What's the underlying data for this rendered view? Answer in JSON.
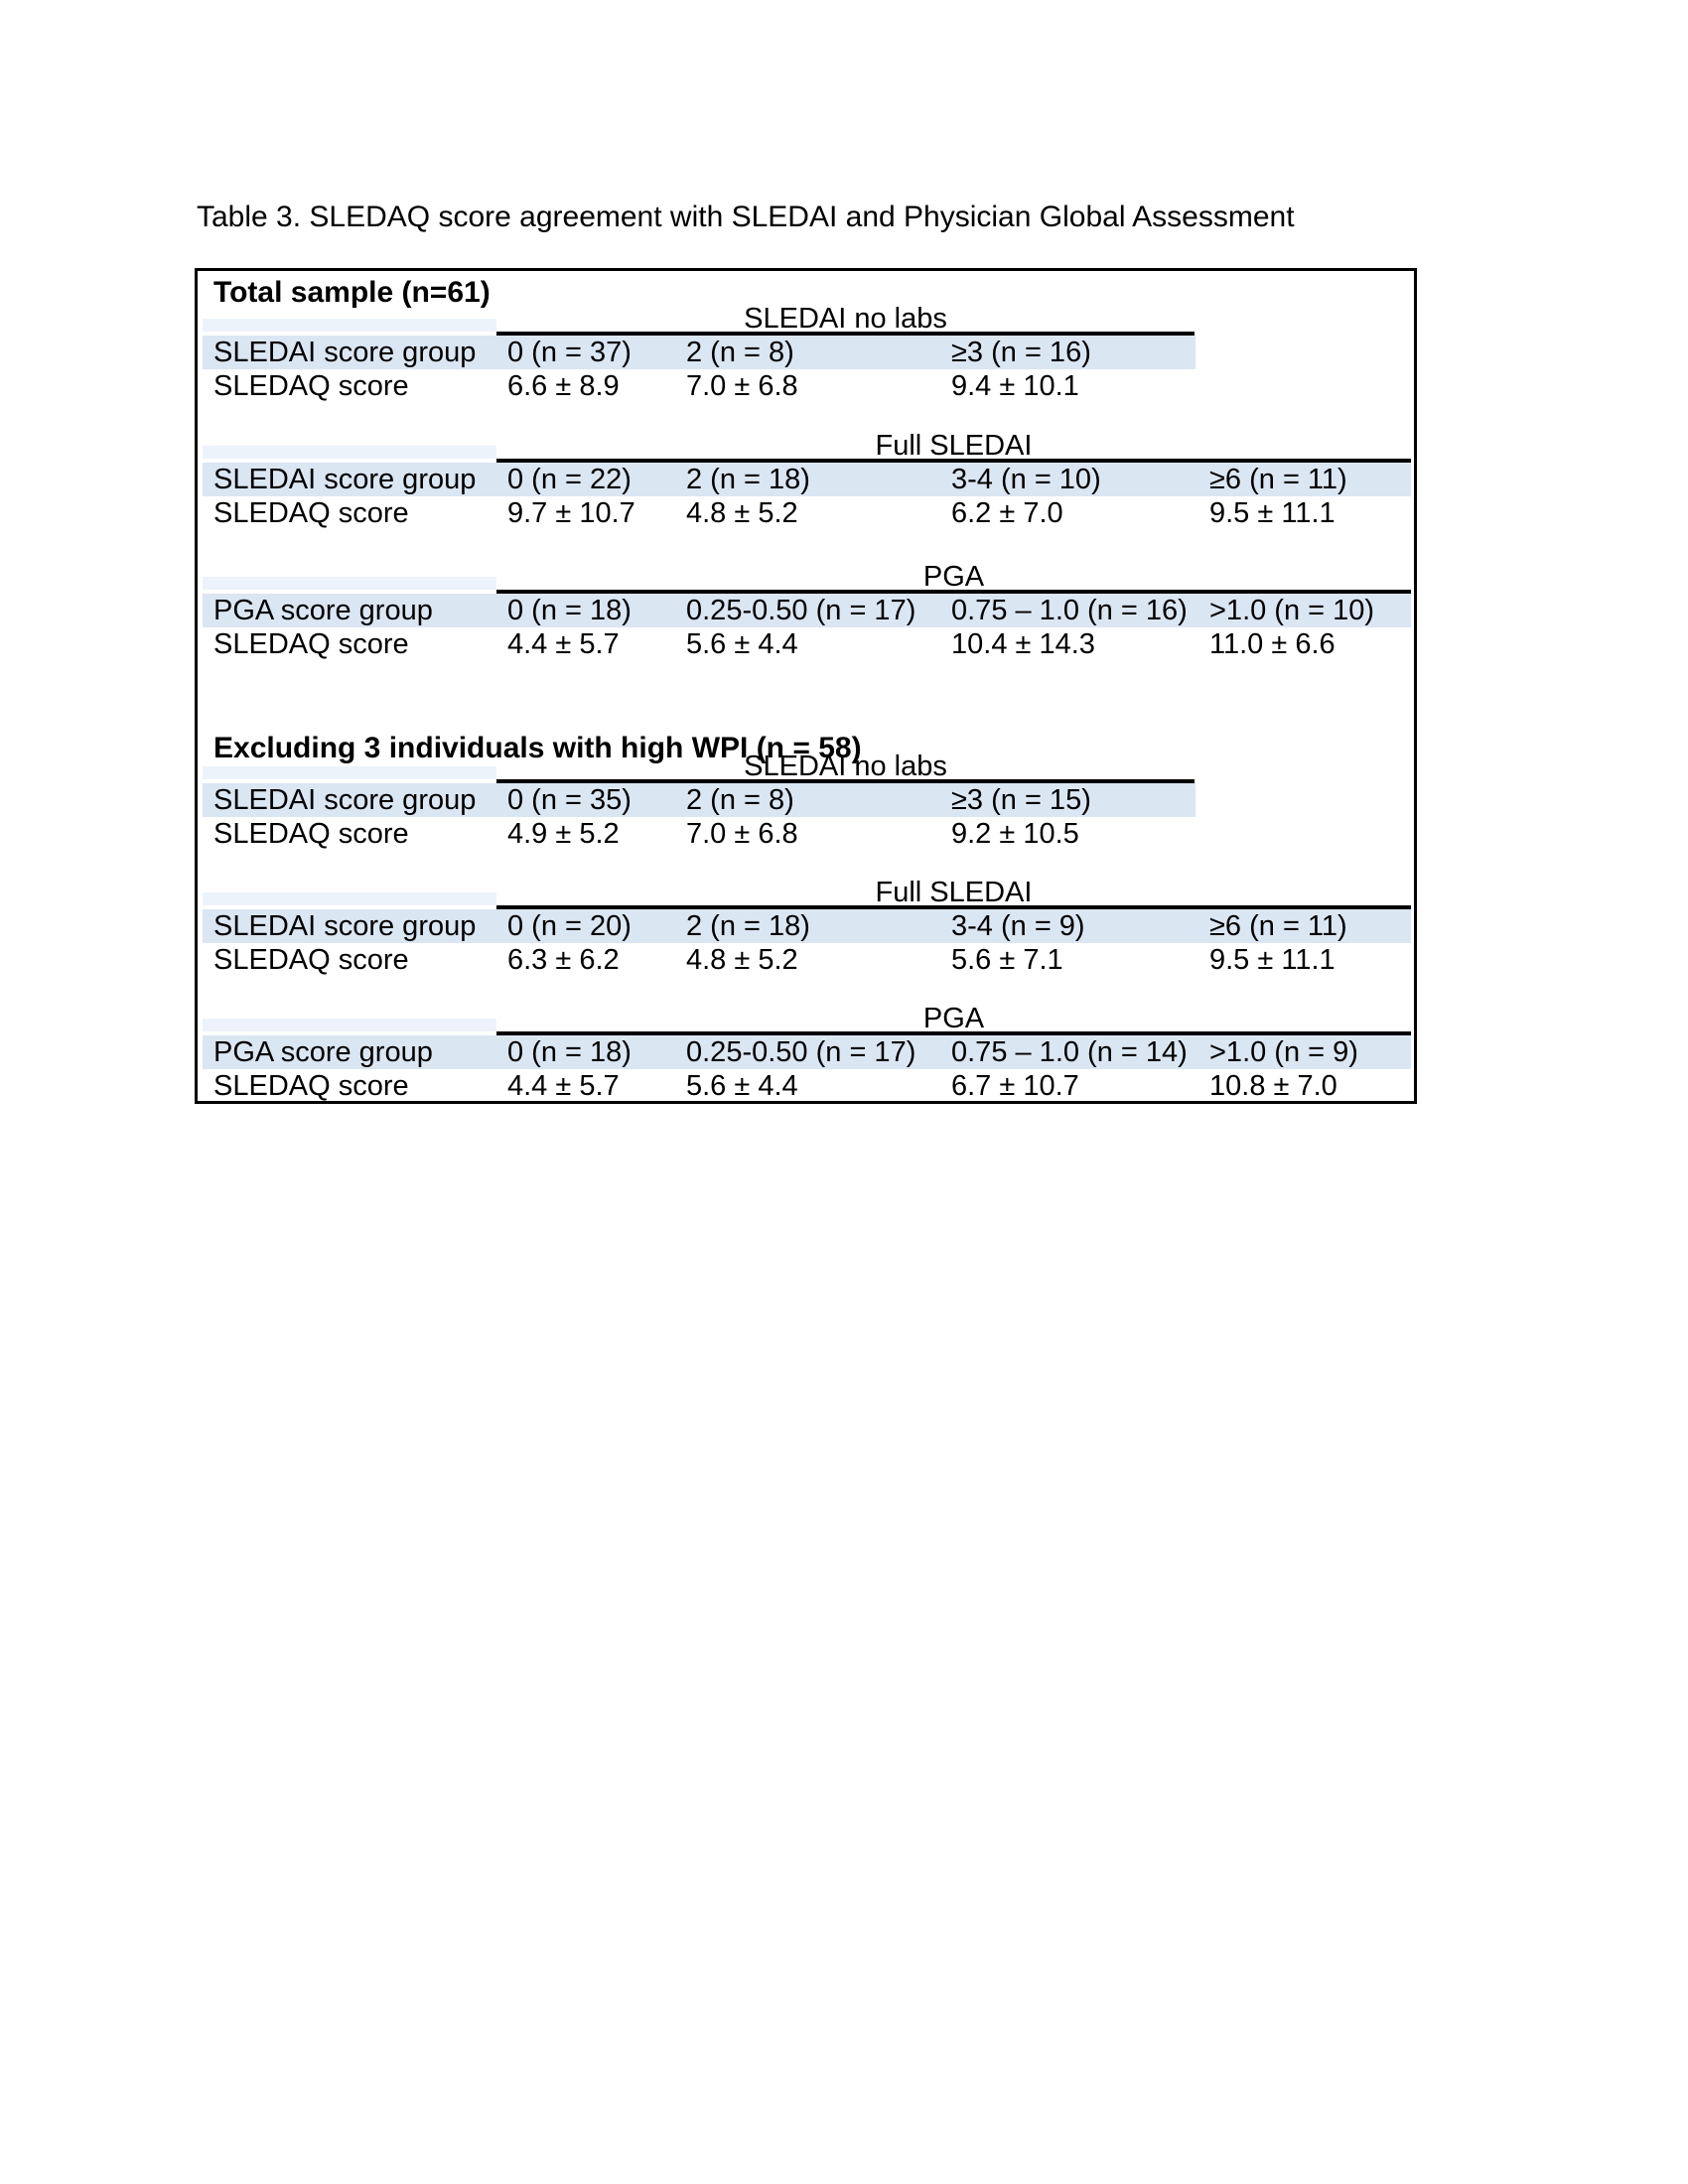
{
  "title": "Table 3. SLEDAQ score agreement with SLEDAI and Physician Global Assessment",
  "colors": {
    "row_highlight": "#dbe6f3",
    "row_highlight_pale": "#ecf3fa",
    "border": "#000000",
    "text": "#000000"
  },
  "blocks": [
    {
      "heading": "Total sample (n=61)",
      "sections": [
        {
          "header": "SLEDAI no labs",
          "label_row": {
            "label": "SLEDAI score group",
            "cells": [
              "0 (n = 37)",
              "2 (n = 8)",
              "≥3 (n = 16)"
            ]
          },
          "value_row": {
            "label": "SLEDAQ score",
            "cells": [
              "6.6 ± 8.9",
              "7.0 ± 6.8",
              "9.4 ± 10.1"
            ]
          }
        },
        {
          "header": "Full SLEDAI",
          "label_row": {
            "label": "SLEDAI score group",
            "cells": [
              "0 (n = 22)",
              "2 (n = 18)",
              "3-4 (n = 10)",
              "≥6 (n = 11)"
            ]
          },
          "value_row": {
            "label": "SLEDAQ score",
            "cells": [
              "9.7 ± 10.7",
              "4.8 ± 5.2",
              "6.2 ± 7.0",
              "9.5 ± 11.1"
            ]
          }
        },
        {
          "header": "PGA",
          "label_row": {
            "label": "PGA score group",
            "cells": [
              "0 (n = 18)",
              "0.25-0.50 (n = 17)",
              "0.75 – 1.0 (n = 16)",
              ">1.0 (n = 10)"
            ]
          },
          "value_row": {
            "label": "SLEDAQ score",
            "cells": [
              "4.4 ± 5.7",
              "5.6 ± 4.4",
              "10.4 ± 14.3",
              "11.0 ± 6.6"
            ]
          }
        }
      ]
    },
    {
      "heading": "Excluding 3 individuals with high WPI (n = 58)",
      "sections": [
        {
          "header": "SLEDAI no labs",
          "label_row": {
            "label": "SLEDAI score group",
            "cells": [
              "0 (n = 35)",
              "2 (n = 8)",
              "≥3 (n = 15)"
            ]
          },
          "value_row": {
            "label": "SLEDAQ score",
            "cells": [
              "4.9 ± 5.2",
              "7.0 ± 6.8",
              "9.2 ± 10.5"
            ]
          }
        },
        {
          "header": "Full SLEDAI",
          "label_row": {
            "label": "SLEDAI score group",
            "cells": [
              "0 (n = 20)",
              "2 (n = 18)",
              "3-4 (n = 9)",
              "≥6 (n = 11)"
            ]
          },
          "value_row": {
            "label": "SLEDAQ score",
            "cells": [
              "6.3 ± 6.2",
              "4.8 ± 5.2",
              "5.6 ± 7.1",
              "9.5 ± 11.1"
            ]
          }
        },
        {
          "header": "PGA",
          "label_row": {
            "label": "PGA score group",
            "cells": [
              "0 (n = 18)",
              "0.25-0.50 (n = 17)",
              "0.75 – 1.0 (n = 14)",
              ">1.0 (n = 9)"
            ]
          },
          "value_row": {
            "label": "SLEDAQ score",
            "cells": [
              "4.4 ± 5.7",
              "5.6 ± 4.4",
              "6.7 ± 10.7",
              "10.8 ± 7.0"
            ]
          }
        }
      ]
    }
  ]
}
